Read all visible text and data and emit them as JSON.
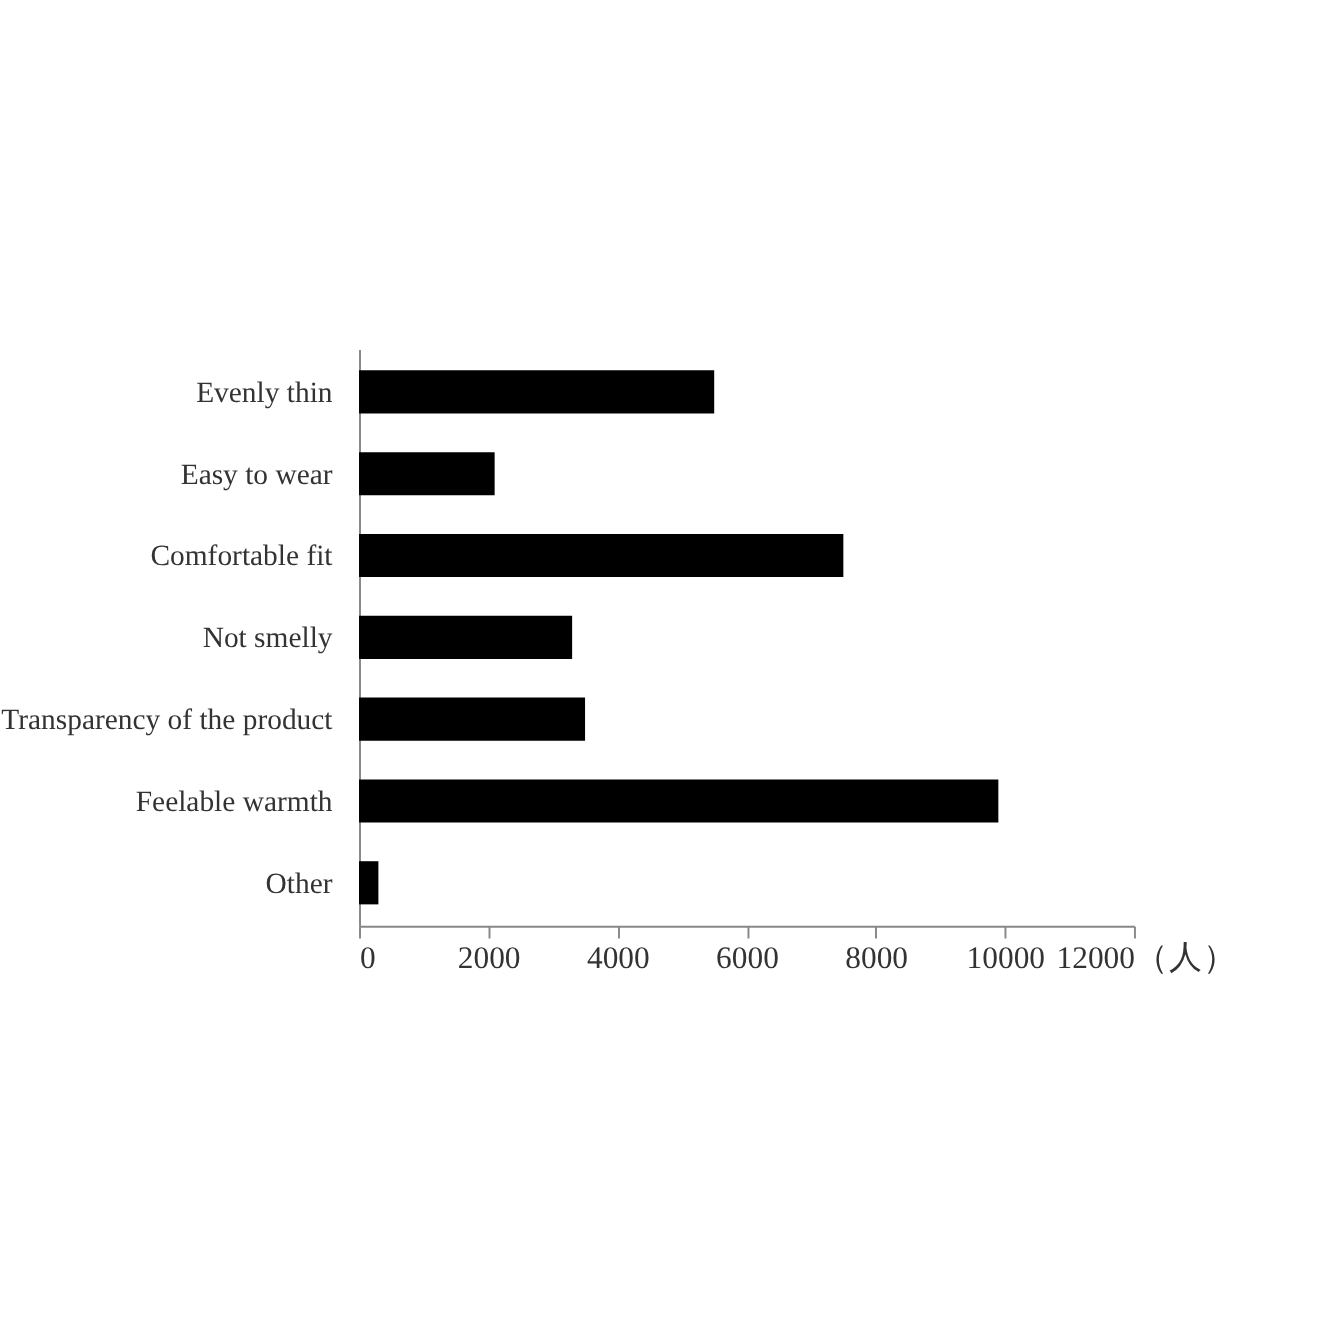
{
  "chart_data": {
    "type": "bar",
    "orientation": "horizontal",
    "xlabel": "（人）",
    "categories": [
      "Evenly thin",
      "Easy to wear",
      "Comfortable fit",
      "Not smelly",
      "Transparency of the product",
      "Feelable warmth",
      "Other"
    ],
    "values": [
      5500,
      2100,
      7500,
      3300,
      3500,
      9900,
      300
    ],
    "color": "#000000",
    "xlim": [
      0,
      12000
    ],
    "xticks": [
      0,
      2000,
      4000,
      6000,
      8000,
      10000,
      12000
    ],
    "grid": false
  }
}
